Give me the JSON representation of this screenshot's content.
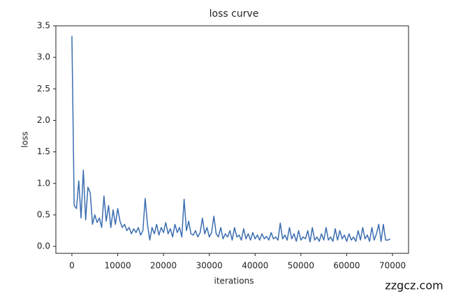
{
  "chart_data": {
    "type": "line",
    "title": "loss curve",
    "x_label": "iterations",
    "y_label": "loss",
    "x": [
      0,
      500,
      1000,
      1500,
      2000,
      2500,
      3000,
      3500,
      4000,
      4500,
      5000,
      5500,
      6000,
      6500,
      7000,
      7500,
      8000,
      8500,
      9000,
      9500,
      10000,
      10500,
      11000,
      11500,
      12000,
      12500,
      13000,
      13500,
      14000,
      14500,
      15000,
      15500,
      16000,
      16500,
      17000,
      17500,
      18000,
      18500,
      19000,
      19500,
      20000,
      20500,
      21000,
      21500,
      22000,
      22500,
      23000,
      23500,
      24000,
      24500,
      25000,
      25500,
      26000,
      26500,
      27000,
      27500,
      28000,
      28500,
      29000,
      29500,
      30000,
      30500,
      31000,
      31500,
      32000,
      32500,
      33000,
      33500,
      34000,
      34500,
      35000,
      35500,
      36000,
      36500,
      37000,
      37500,
      38000,
      38500,
      39000,
      39500,
      40000,
      40500,
      41000,
      41500,
      42000,
      42500,
      43000,
      43500,
      44000,
      44500,
      45000,
      45500,
      46000,
      46500,
      47000,
      47500,
      48000,
      48500,
      49000,
      49500,
      50000,
      50500,
      51000,
      51500,
      52000,
      52500,
      53000,
      53500,
      54000,
      54500,
      55000,
      55500,
      56000,
      56500,
      57000,
      57500,
      58000,
      58500,
      59000,
      59500,
      60000,
      60500,
      61000,
      61500,
      62000,
      62500,
      63000,
      63500,
      64000,
      64500,
      65000,
      65500,
      66000,
      66500,
      67000,
      67500,
      68000,
      68500,
      69000,
      69500
    ],
    "values": [
      3.34,
      0.65,
      0.6,
      1.04,
      0.45,
      1.21,
      0.42,
      0.94,
      0.85,
      0.35,
      0.5,
      0.38,
      0.45,
      0.3,
      0.8,
      0.4,
      0.65,
      0.3,
      0.58,
      0.35,
      0.6,
      0.4,
      0.3,
      0.35,
      0.25,
      0.3,
      0.2,
      0.28,
      0.22,
      0.3,
      0.18,
      0.25,
      0.76,
      0.35,
      0.1,
      0.3,
      0.2,
      0.35,
      0.18,
      0.3,
      0.22,
      0.38,
      0.2,
      0.28,
      0.15,
      0.35,
      0.22,
      0.3,
      0.15,
      0.75,
      0.25,
      0.4,
      0.2,
      0.18,
      0.25,
      0.15,
      0.22,
      0.45,
      0.2,
      0.3,
      0.15,
      0.22,
      0.48,
      0.2,
      0.15,
      0.3,
      0.12,
      0.2,
      0.15,
      0.25,
      0.1,
      0.3,
      0.15,
      0.18,
      0.1,
      0.28,
      0.12,
      0.2,
      0.1,
      0.22,
      0.12,
      0.18,
      0.1,
      0.2,
      0.12,
      0.16,
      0.1,
      0.22,
      0.12,
      0.15,
      0.1,
      0.37,
      0.12,
      0.18,
      0.1,
      0.3,
      0.12,
      0.2,
      0.08,
      0.25,
      0.1,
      0.15,
      0.12,
      0.25,
      0.07,
      0.3,
      0.1,
      0.15,
      0.08,
      0.2,
      0.1,
      0.3,
      0.1,
      0.15,
      0.08,
      0.28,
      0.1,
      0.25,
      0.12,
      0.18,
      0.08,
      0.2,
      0.1,
      0.15,
      0.08,
      0.25,
      0.1,
      0.3,
      0.12,
      0.18,
      0.08,
      0.3,
      0.1,
      0.2,
      0.35,
      0.08,
      0.35,
      0.1,
      0.1,
      0.12
    ],
    "color": "#3a6db0",
    "xlim": [
      -3500,
      73500
    ],
    "xticks": [
      0,
      10000,
      20000,
      30000,
      40000,
      50000,
      60000,
      70000
    ],
    "ylim": [
      -0.11,
      3.5
    ],
    "yticks": [
      {
        "value": 0,
        "label": "0.0"
      },
      {
        "value": 0.5,
        "label": "0.5"
      },
      {
        "value": 1,
        "label": "1.0"
      },
      {
        "value": 1.5,
        "label": "1.5"
      },
      {
        "value": 2,
        "label": "2.0"
      },
      {
        "value": 2.5,
        "label": "2.5"
      },
      {
        "value": 3,
        "label": "3.0"
      },
      {
        "value": 3.5,
        "label": "3.5"
      }
    ],
    "grid": false
  },
  "watermark": "zzgcz.com"
}
